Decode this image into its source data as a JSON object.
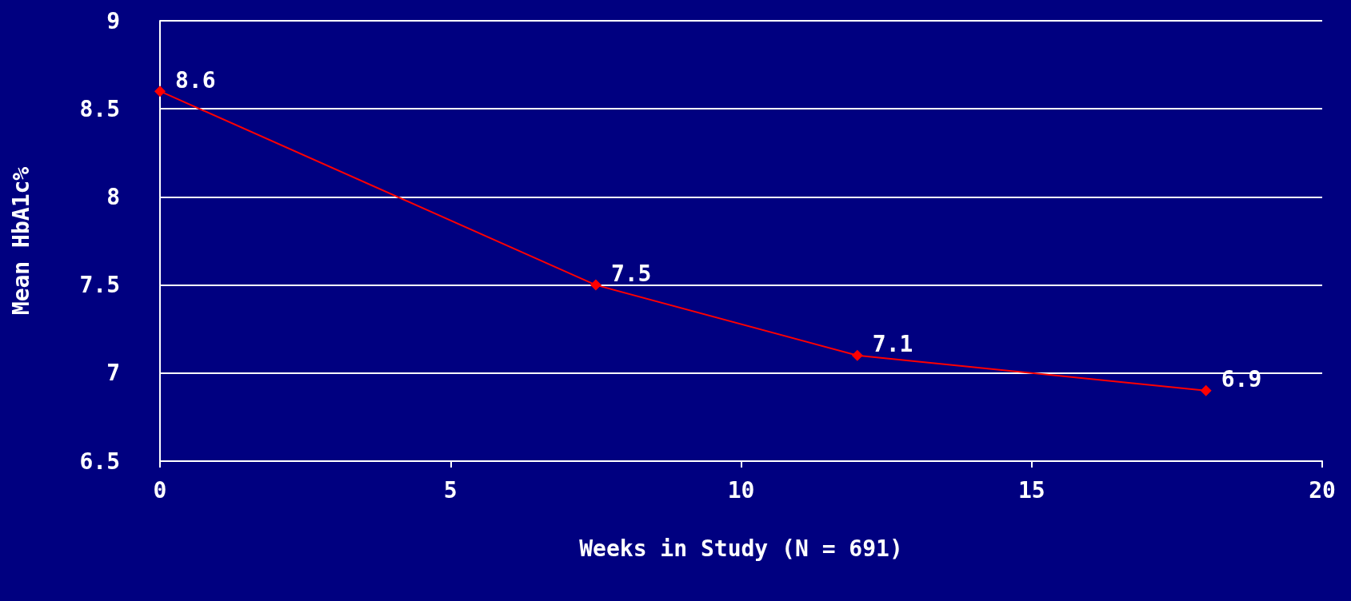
{
  "chart_data": {
    "type": "line",
    "xlabel": "Weeks in Study (N = 691)",
    "ylabel": "Mean HbA1c%",
    "x": [
      0,
      7.5,
      12,
      18
    ],
    "series": [
      {
        "color": "#ff0000",
        "values": [
          8.6,
          7.5,
          7.1,
          6.9
        ]
      }
    ],
    "xlim": [
      0,
      20
    ],
    "xticks": [
      0,
      5,
      10,
      15,
      20
    ],
    "ylim": [
      6.5,
      9
    ],
    "yticks": [
      6.5,
      7,
      7.5,
      8,
      8.5,
      9
    ],
    "grid": "y",
    "marker": "diamond",
    "line_style": "solid",
    "data_labels": true
  }
}
